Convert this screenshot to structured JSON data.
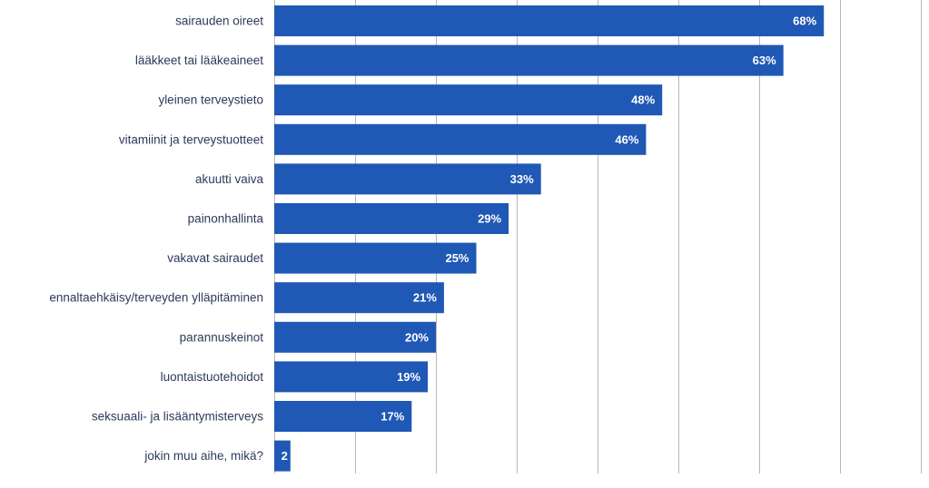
{
  "chart_data": {
    "type": "bar",
    "orientation": "horizontal",
    "title": "",
    "xlabel": "",
    "ylabel": "",
    "xlim": [
      0,
      80
    ],
    "grid": true,
    "legend": "none",
    "bar_color": "#1f58b5",
    "categories": [
      "sairauden oireet",
      "lääkkeet tai lääkeaineet",
      "yleinen terveystieto",
      "vitamiinit ja terveystuotteet",
      "akuutti vaiva",
      "painonhallinta",
      "vakavat sairaudet",
      "ennaltaehkäisy/terveyden ylläpitäminen",
      "parannuskeinot",
      "luontaistuotehoidot",
      "seksuaali- ja lisääntymisterveys",
      "jokin muu aihe, mikä?"
    ],
    "values": [
      68,
      63,
      48,
      46,
      33,
      29,
      25,
      21,
      20,
      19,
      17,
      2
    ],
    "value_labels": [
      "68%",
      "63%",
      "48%",
      "46%",
      "33%",
      "29%",
      "25%",
      "21%",
      "20%",
      "19%",
      "17%",
      "2"
    ]
  }
}
